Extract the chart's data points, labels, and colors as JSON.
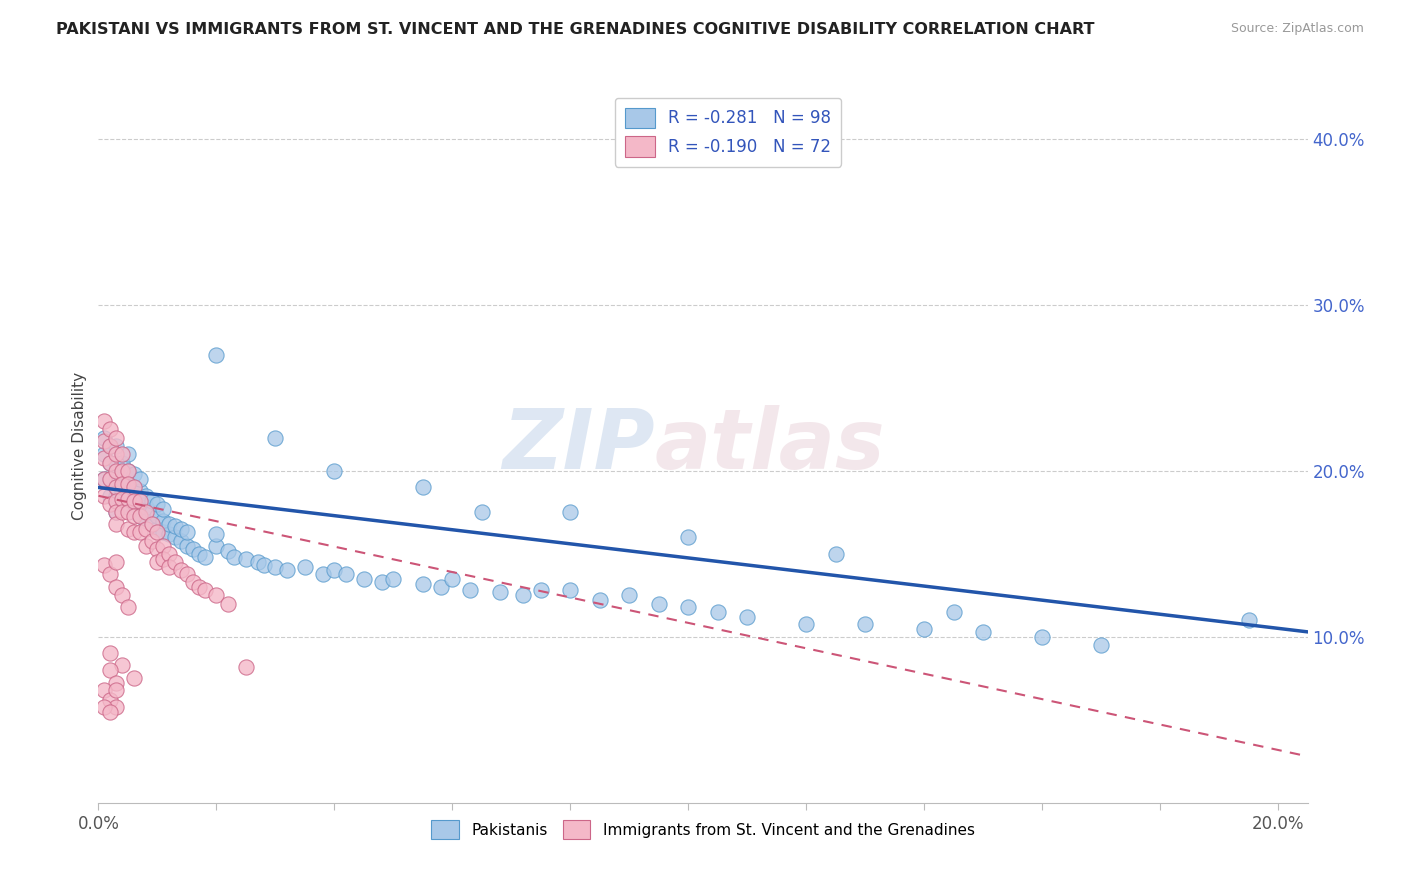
{
  "title": "PAKISTANI VS IMMIGRANTS FROM ST. VINCENT AND THE GRENADINES COGNITIVE DISABILITY CORRELATION CHART",
  "source": "Source: ZipAtlas.com",
  "ylabel": "Cognitive Disability",
  "xlim": [
    0.0,
    0.205
  ],
  "ylim": [
    0.0,
    0.43
  ],
  "yticks_right": [
    0.1,
    0.2,
    0.3,
    0.4
  ],
  "ytick_right_labels": [
    "10.0%",
    "20.0%",
    "30.0%",
    "40.0%"
  ],
  "legend_R1": "R = -0.281",
  "legend_N1": "N = 98",
  "legend_R2": "R = -0.190",
  "legend_N2": "N = 72",
  "blue_color": "#a8c8e8",
  "blue_edge": "#5599cc",
  "pink_color": "#f4b8c8",
  "pink_edge": "#cc6688",
  "trend_blue": "#2255aa",
  "trend_pink": "#cc5577",
  "blue_trend_start_y": 0.19,
  "blue_trend_end_y": 0.103,
  "pink_trend_start_y": 0.185,
  "pink_trend_end_y": 0.028,
  "blue_scatter_x": [
    0.001,
    0.001,
    0.001,
    0.002,
    0.002,
    0.002,
    0.002,
    0.003,
    0.003,
    0.003,
    0.003,
    0.003,
    0.004,
    0.004,
    0.004,
    0.004,
    0.005,
    0.005,
    0.005,
    0.005,
    0.005,
    0.006,
    0.006,
    0.006,
    0.006,
    0.007,
    0.007,
    0.007,
    0.007,
    0.008,
    0.008,
    0.008,
    0.009,
    0.009,
    0.009,
    0.01,
    0.01,
    0.01,
    0.011,
    0.011,
    0.011,
    0.012,
    0.012,
    0.013,
    0.013,
    0.014,
    0.014,
    0.015,
    0.015,
    0.016,
    0.017,
    0.018,
    0.02,
    0.02,
    0.022,
    0.023,
    0.025,
    0.027,
    0.028,
    0.03,
    0.032,
    0.035,
    0.038,
    0.04,
    0.042,
    0.045,
    0.048,
    0.05,
    0.055,
    0.058,
    0.06,
    0.063,
    0.068,
    0.072,
    0.075,
    0.08,
    0.085,
    0.09,
    0.095,
    0.1,
    0.105,
    0.11,
    0.12,
    0.13,
    0.14,
    0.15,
    0.16,
    0.17,
    0.02,
    0.03,
    0.04,
    0.055,
    0.065,
    0.08,
    0.1,
    0.125,
    0.145,
    0.195
  ],
  "blue_scatter_y": [
    0.195,
    0.21,
    0.22,
    0.185,
    0.195,
    0.205,
    0.215,
    0.175,
    0.185,
    0.195,
    0.205,
    0.215,
    0.18,
    0.188,
    0.195,
    0.205,
    0.178,
    0.185,
    0.192,
    0.2,
    0.21,
    0.175,
    0.183,
    0.19,
    0.198,
    0.173,
    0.18,
    0.188,
    0.195,
    0.17,
    0.178,
    0.185,
    0.168,
    0.175,
    0.182,
    0.165,
    0.173,
    0.18,
    0.163,
    0.17,
    0.177,
    0.162,
    0.168,
    0.16,
    0.167,
    0.158,
    0.165,
    0.155,
    0.163,
    0.153,
    0.15,
    0.148,
    0.155,
    0.162,
    0.152,
    0.148,
    0.147,
    0.145,
    0.143,
    0.142,
    0.14,
    0.142,
    0.138,
    0.14,
    0.138,
    0.135,
    0.133,
    0.135,
    0.132,
    0.13,
    0.135,
    0.128,
    0.127,
    0.125,
    0.128,
    0.128,
    0.122,
    0.125,
    0.12,
    0.118,
    0.115,
    0.112,
    0.108,
    0.108,
    0.105,
    0.103,
    0.1,
    0.095,
    0.27,
    0.22,
    0.2,
    0.19,
    0.175,
    0.175,
    0.16,
    0.15,
    0.115,
    0.11
  ],
  "pink_scatter_x": [
    0.001,
    0.001,
    0.001,
    0.001,
    0.001,
    0.002,
    0.002,
    0.002,
    0.002,
    0.002,
    0.003,
    0.003,
    0.003,
    0.003,
    0.003,
    0.003,
    0.003,
    0.004,
    0.004,
    0.004,
    0.004,
    0.004,
    0.005,
    0.005,
    0.005,
    0.005,
    0.005,
    0.006,
    0.006,
    0.006,
    0.006,
    0.007,
    0.007,
    0.007,
    0.008,
    0.008,
    0.008,
    0.009,
    0.009,
    0.01,
    0.01,
    0.01,
    0.011,
    0.011,
    0.012,
    0.012,
    0.013,
    0.014,
    0.015,
    0.016,
    0.017,
    0.018,
    0.02,
    0.022,
    0.001,
    0.002,
    0.003,
    0.003,
    0.004,
    0.005,
    0.002,
    0.004,
    0.006,
    0.002,
    0.003,
    0.001,
    0.002,
    0.003,
    0.003,
    0.001,
    0.002,
    0.025
  ],
  "pink_scatter_y": [
    0.23,
    0.218,
    0.208,
    0.195,
    0.185,
    0.225,
    0.215,
    0.205,
    0.195,
    0.18,
    0.22,
    0.21,
    0.2,
    0.19,
    0.182,
    0.175,
    0.168,
    0.21,
    0.2,
    0.192,
    0.183,
    0.175,
    0.2,
    0.192,
    0.183,
    0.175,
    0.165,
    0.19,
    0.182,
    0.173,
    0.163,
    0.182,
    0.173,
    0.163,
    0.175,
    0.165,
    0.155,
    0.168,
    0.158,
    0.163,
    0.153,
    0.145,
    0.155,
    0.147,
    0.15,
    0.142,
    0.145,
    0.14,
    0.138,
    0.133,
    0.13,
    0.128,
    0.125,
    0.12,
    0.143,
    0.138,
    0.13,
    0.145,
    0.125,
    0.118,
    0.09,
    0.083,
    0.075,
    0.08,
    0.072,
    0.068,
    0.062,
    0.058,
    0.068,
    0.058,
    0.055,
    0.082
  ]
}
